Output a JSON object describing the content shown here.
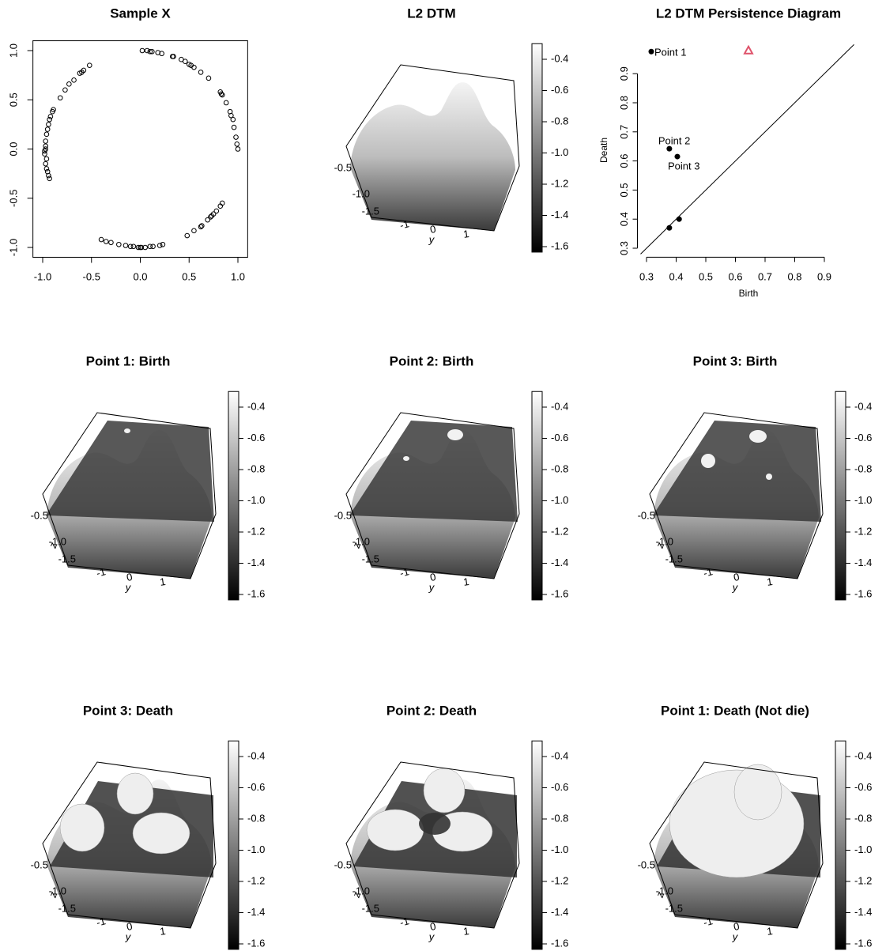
{
  "chart_data": [
    {
      "type": "scatter",
      "title": "Sample X",
      "x": [
        -0.97,
        -0.97,
        -0.98,
        -0.97,
        -0.96,
        -0.95,
        -0.94,
        -0.93,
        -0.92,
        -0.9,
        -0.89,
        -0.96,
        -0.97,
        -0.96,
        -0.95,
        -0.94,
        -0.93,
        -0.98,
        -0.82,
        -0.77,
        -0.73,
        -0.68,
        -0.62,
        -0.6,
        -0.58,
        -0.52,
        0.02,
        0.07,
        0.1,
        0.12,
        0.18,
        0.22,
        0.33,
        0.34,
        0.42,
        0.46,
        0.5,
        0.52,
        0.55,
        0.62,
        0.7,
        0.82,
        0.83,
        0.84,
        0.88,
        0.92,
        0.93,
        0.95,
        0.96,
        0.98,
        0.99,
        1.0,
        0.48,
        0.55,
        0.62,
        0.63,
        0.69,
        0.72,
        0.73,
        0.75,
        0.78,
        0.82,
        0.84,
        -0.4,
        -0.35,
        -0.3,
        -0.22,
        -0.15,
        -0.1,
        -0.07,
        -0.02,
        0.0,
        0.01,
        0.05,
        0.1,
        0.13,
        0.2,
        0.23
      ],
      "values": [
        0.0,
        0.03,
        -0.02,
        0.08,
        0.15,
        0.2,
        0.25,
        0.3,
        0.33,
        0.38,
        0.4,
        -0.1,
        -0.15,
        -0.2,
        -0.23,
        -0.27,
        -0.3,
        -0.05,
        0.52,
        0.6,
        0.66,
        0.7,
        0.77,
        0.78,
        0.8,
        0.85,
        1.0,
        1.0,
        0.99,
        0.99,
        0.98,
        0.97,
        0.94,
        0.94,
        0.91,
        0.89,
        0.86,
        0.85,
        0.83,
        0.78,
        0.72,
        0.58,
        0.56,
        0.55,
        0.47,
        0.38,
        0.34,
        0.3,
        0.22,
        0.12,
        0.05,
        0.0,
        -0.88,
        -0.83,
        -0.79,
        -0.78,
        -0.72,
        -0.69,
        -0.68,
        -0.66,
        -0.63,
        -0.58,
        -0.55,
        -0.92,
        -0.94,
        -0.95,
        -0.97,
        -0.98,
        -0.99,
        -0.99,
        -1.0,
        -1.0,
        -1.0,
        -1.0,
        -0.99,
        -0.99,
        -0.98,
        -0.97
      ],
      "color": "#000000",
      "xlim": [
        -1.1,
        1.1
      ],
      "ylim": [
        -1.1,
        1.1
      ],
      "xticks": [
        {
          "value": -1,
          "label": "-1.0"
        },
        -0.5,
        {
          "value": 0,
          "label": "0.0"
        },
        0.5,
        {
          "value": 1,
          "label": "1.0"
        }
      ],
      "yticks": [
        {
          "value": -1,
          "label": "-1.0"
        },
        -0.5,
        {
          "value": 0,
          "label": "0.0"
        },
        0.5,
        {
          "value": 1,
          "label": "1.0"
        }
      ]
    },
    {
      "type": "surface",
      "title": "L2 DTM",
      "colorbar_lim": [
        -1.635,
        -0.3
      ],
      "colorbar_ticks": [
        -0.4,
        -0.6,
        -0.8,
        {
          "value": -1,
          "label": "-1.0"
        },
        -1.2,
        -1.4,
        -1.6
      ],
      "zticks": [
        -0.5,
        {
          "value": -1,
          "label": "-1.0"
        },
        -1.5
      ],
      "yticks": [
        -1,
        0,
        1
      ],
      "ylabel": "y"
    },
    {
      "type": "persistence",
      "title": "L2 DTM Persistence Diagram",
      "xlabel": "Birth",
      "ylabel": "Death",
      "x": [
        0.316,
        0.377,
        0.404,
        0.377,
        0.41
      ],
      "values": [
        0.976,
        0.642,
        0.615,
        0.37,
        0.4
      ],
      "point_labels": [
        "Point 1",
        "Point 2",
        "Point 3",
        null,
        null
      ],
      "color": "#000000",
      "inf_x": [
        0.644
      ],
      "inf_values": [
        0.98
      ],
      "inf_color": "#df536b",
      "xlim": [
        0.28,
        1.0
      ],
      "ylim": [
        0.28,
        1.0
      ],
      "xticks": [
        0.3,
        0.4,
        0.5,
        0.6,
        0.7,
        0.8,
        0.9
      ],
      "yticks": [
        0.3,
        0.4,
        0.5,
        0.6,
        0.7,
        0.8,
        0.9
      ]
    },
    {
      "type": "surface",
      "title": "Point 1: Birth",
      "colorbar_lim": [
        -1.635,
        -0.3
      ],
      "colorbar_ticks": [
        -0.4,
        -0.6,
        -0.8,
        {
          "value": -1,
          "label": "-1.0"
        },
        -1.2,
        -1.4,
        -1.6
      ],
      "zticks": [
        -0.5,
        {
          "value": -1,
          "label": "-1.0"
        },
        -1.5
      ],
      "yticks": [
        -1,
        0,
        1
      ],
      "ylabel": "y",
      "zlabel": "z"
    },
    {
      "type": "surface",
      "title": "Point 2: Birth",
      "colorbar_lim": [
        -1.635,
        -0.3
      ],
      "colorbar_ticks": [
        -0.4,
        -0.6,
        -0.8,
        {
          "value": -1,
          "label": "-1.0"
        },
        -1.2,
        -1.4,
        -1.6
      ],
      "zticks": [
        -0.5,
        {
          "value": -1,
          "label": "-1.0"
        },
        -1.5
      ],
      "yticks": [
        -1,
        0,
        1
      ],
      "ylabel": "y",
      "zlabel": "z"
    },
    {
      "type": "surface",
      "title": "Point 3: Birth",
      "colorbar_lim": [
        -1.635,
        -0.3
      ],
      "colorbar_ticks": [
        -0.4,
        -0.6,
        -0.8,
        {
          "value": -1,
          "label": "-1.0"
        },
        -1.2,
        -1.4,
        -1.6
      ],
      "zticks": [
        -0.5,
        {
          "value": -1,
          "label": "-1.0"
        },
        -1.5
      ],
      "yticks": [
        -1,
        0,
        1
      ],
      "ylabel": "y",
      "zlabel": "z"
    },
    {
      "type": "surface",
      "title": "Point 3: Death",
      "colorbar_lim": [
        -1.635,
        -0.3
      ],
      "colorbar_ticks": [
        -0.4,
        -0.6,
        -0.8,
        {
          "value": -1,
          "label": "-1.0"
        },
        -1.2,
        -1.4,
        -1.6
      ],
      "zticks": [
        -0.5,
        {
          "value": -1,
          "label": "-1.0"
        },
        -1.5
      ],
      "yticks": [
        -1,
        0,
        1
      ],
      "ylabel": "y",
      "zlabel": "z"
    },
    {
      "type": "surface",
      "title": "Point 2: Death",
      "colorbar_lim": [
        -1.635,
        -0.3
      ],
      "colorbar_ticks": [
        -0.4,
        -0.6,
        -0.8,
        {
          "value": -1,
          "label": "-1.0"
        },
        -1.2,
        -1.4,
        -1.6
      ],
      "zticks": [
        -0.5,
        {
          "value": -1,
          "label": "-1.0"
        },
        -1.5
      ],
      "yticks": [
        -1,
        0,
        1
      ],
      "ylabel": "y",
      "zlabel": "z"
    },
    {
      "type": "surface",
      "title": "Point 1: Death (Not die)",
      "colorbar_lim": [
        -1.635,
        -0.3
      ],
      "colorbar_ticks": [
        -0.4,
        -0.6,
        -0.8,
        {
          "value": -1,
          "label": "-1.0"
        },
        -1.2,
        -1.4,
        -1.6
      ],
      "zticks": [
        -0.5,
        {
          "value": -1,
          "label": "-1.0"
        },
        -1.5
      ],
      "yticks": [
        -1,
        0,
        1
      ],
      "ylabel": "y",
      "zlabel": "z"
    }
  ]
}
